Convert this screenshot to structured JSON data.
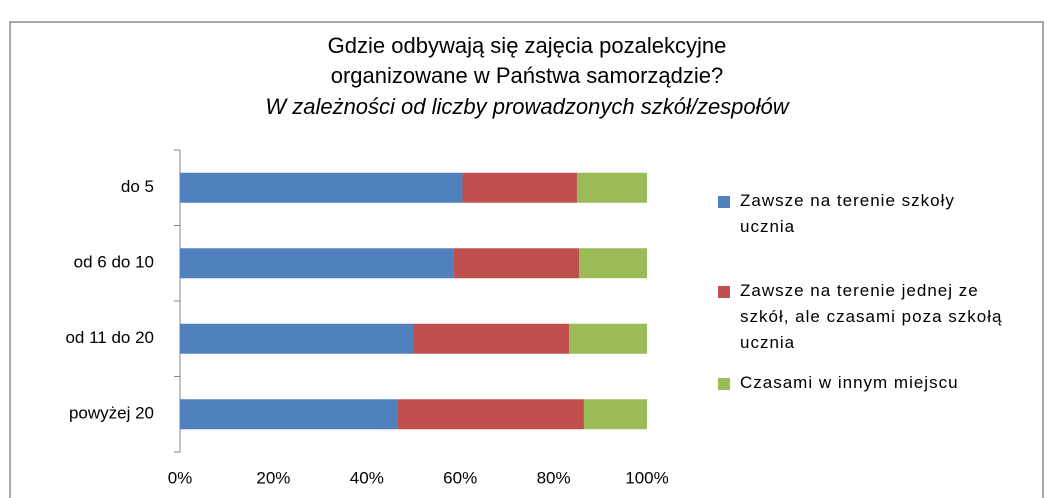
{
  "chart_data": {
    "type": "stacked-barh",
    "title": [
      "Gdzie odbywają się zajęcia pozalekcyjne",
      "organizowane w Państwa samorządzie?"
    ],
    "subtitle": "W zależności od liczby prowadzonych szkół/zespołów",
    "categories": [
      "do 5",
      "od 6 do 10",
      "od 11 do 20",
      "powyżej 20"
    ],
    "series": [
      {
        "name": "Zawsze na terenie szkoły ucznia",
        "color": "#4f81bd",
        "values": [
          60.5,
          58.5,
          50,
          46.5
        ]
      },
      {
        "name": "Zawsze na terenie jednej ze szkół, ale czasami poza szkołą ucznia",
        "color": "#c0504d",
        "values": [
          24.5,
          27,
          33.3,
          40
        ]
      },
      {
        "name": "Czasami w innym miejscu",
        "color": "#9bbb59",
        "values": [
          15,
          14.5,
          16.7,
          13.5
        ]
      }
    ],
    "xlim": [
      0,
      100
    ],
    "xticks": [
      {
        "value": 0,
        "label": "0%"
      },
      {
        "value": 20,
        "label": "20%"
      },
      {
        "value": 40,
        "label": "40%"
      },
      {
        "value": 60,
        "label": "60%"
      },
      {
        "value": 80,
        "label": "80%"
      },
      {
        "value": 100,
        "label": "100%"
      }
    ],
    "legend": "right"
  }
}
